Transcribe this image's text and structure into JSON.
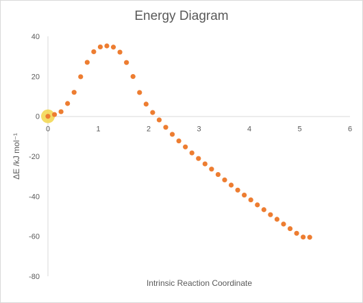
{
  "chart_data": {
    "type": "scatter",
    "title": "Energy Diagram",
    "xlabel": "Intrinsic Reaction Coordinate",
    "ylabel": "ΔE /kJ mol⁻¹",
    "xlim": [
      0,
      6
    ],
    "ylim": [
      -80,
      40
    ],
    "x_ticks": [
      0,
      1,
      2,
      3,
      4,
      5,
      6
    ],
    "y_ticks": [
      40,
      20,
      0,
      -20,
      -40,
      -60,
      -80
    ],
    "grid": false,
    "legend": "none",
    "marker_color": "#ED7D31",
    "highlight_color": "#F2D64B",
    "highlight_point": {
      "x": 0,
      "y": 0
    },
    "series": [
      {
        "x": [
          0.0,
          0.13,
          0.26,
          0.39,
          0.52,
          0.65,
          0.78,
          0.91,
          1.04,
          1.17,
          1.3,
          1.43,
          1.56,
          1.69,
          1.82,
          1.95,
          2.08,
          2.21,
          2.34,
          2.47,
          2.6,
          2.73,
          2.86,
          2.99,
          3.12,
          3.25,
          3.38,
          3.51,
          3.64,
          3.77,
          3.9,
          4.03,
          4.16,
          4.29,
          4.42,
          4.55,
          4.68,
          4.81,
          4.94,
          5.07,
          5.2
        ],
        "y": [
          0.0,
          0.9,
          2.3,
          6.4,
          12.0,
          19.8,
          27.0,
          32.3,
          34.7,
          35.2,
          34.6,
          32.1,
          26.9,
          19.9,
          11.9,
          6.1,
          1.9,
          -1.8,
          -5.5,
          -9.0,
          -12.3,
          -15.3,
          -18.3,
          -21.1,
          -23.8,
          -26.4,
          -29.1,
          -31.8,
          -34.4,
          -36.9,
          -39.4,
          -41.8,
          -44.3,
          -46.7,
          -49.2,
          -51.5,
          -53.9,
          -56.2,
          -58.5,
          -60.4,
          -60.5
        ]
      }
    ]
  }
}
